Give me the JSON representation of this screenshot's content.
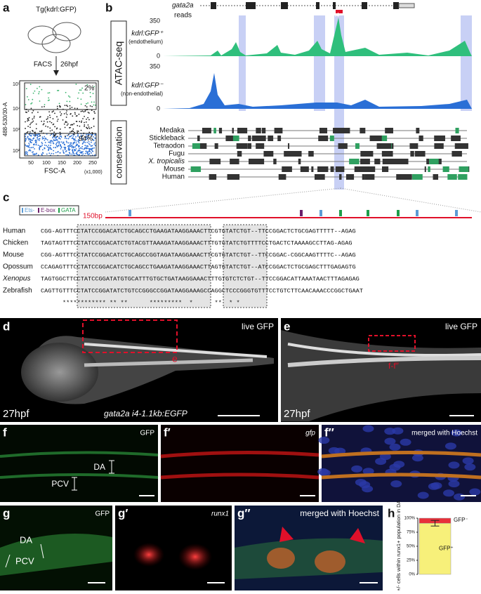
{
  "panel_a": {
    "letter": "a",
    "fish": "Tg(kdrl:GFP)",
    "facs": "FACS",
    "stage": "26hpf",
    "gate_top": "2%",
    "gate_bottom": "94%",
    "y_label": "488-530/30-A",
    "x_label": "FSC-A",
    "x_unit": "(x1,000)",
    "y_ticks": [
      "10⁵",
      "10⁴",
      "10³",
      "10²"
    ],
    "x_ticks": [
      "50",
      "100",
      "150",
      "200",
      "250"
    ]
  },
  "panel_b": {
    "letter": "b",
    "gene": "gata2a",
    "reads": "reads",
    "intron": "i4",
    "atac": "ATAC-seq",
    "track1": "kdrl:GFP⁺",
    "track1_sub": "(endothelium)",
    "track1_max": "350",
    "track1_min": "0",
    "track2": "kdrl:GFP⁻",
    "track2_sub": "(non-endothelial)",
    "track2_max": "350",
    "track2_min": "0",
    "conservation": "conservation",
    "species": [
      "Medaka",
      "Stickleback",
      "Tetraodon",
      "Fugu",
      "X. tropicalis",
      "Mouse",
      "Human"
    ]
  },
  "panel_c": {
    "letter": "c",
    "legend": [
      "Ets-",
      "E-box",
      "GATA"
    ],
    "scale": "150bp",
    "names": [
      "Human",
      "Chicken",
      "Mouse",
      "Opossum",
      "Xenopus",
      "Zebrafish"
    ],
    "sequences": [
      "CGG-AGTTTCCTATCCGGACATCTGCAGCCTGAAGATAAGGAAACTTCGTGTATCTGT--TTCCGGACTCTGCGAGTTTTT--AGAG",
      "TAGTAGTTTCCTATCCGGACATCTGTACGTTAAAGATAAGGAAACTTTGTGTATCTGTTTTCCTGACTCTAAAAGCCTTAG-AGAG",
      "CGG-AGTTTCCTATCCGGACATCTGCAGCCGGTAGATAAGGAAACTTCGTGTATCTGT--TTCCGGAC-CGGCAAGTTTTC--AGAG",
      "CCAGAGTTTCCTATCCGGACATCTGCAGCCTGAAGATAAGGAAACTTAGTGTATCTGT--ATCCGGACTCTGCGAGCTTTGAGAGTG",
      "TAGTGGCTTCCTATCCGGATATGTGCATTTGTGCTGATAAGGAAACTTTGTGTCTCTGT--TTCCGGACATTAAATAACTTTAGAGAG",
      "CAGTTGTTTCCTATCCGGATATCTGTCCGGGCCGGATAAGGAAAGCCAGGCTCCCGGGTGTTTCCTGTCTTCAACAAACCCGGCTGAAT"
    ],
    "conserved": "      ************ ** **      *********  *      **  * *"
  },
  "panel_d": {
    "letter": "d",
    "label": "live GFP",
    "box": "e",
    "stage": "27hpf",
    "construct": "gata2a i4-1.1kb:EGFP"
  },
  "panel_e": {
    "letter": "e",
    "label": "live GFP",
    "box": "f-f″",
    "stage": "27hpf"
  },
  "panel_f": {
    "letter": "f",
    "label": "GFP",
    "da": "DA",
    "pcv": "PCV"
  },
  "panel_f1": {
    "letter": "f′",
    "label": "gfp"
  },
  "panel_f2": {
    "letter": "f″",
    "label": "merged with Hoechst"
  },
  "panel_g": {
    "letter": "g",
    "label": "GFP",
    "da": "DA",
    "pcv": "PCV"
  },
  "panel_g1": {
    "letter": "g′",
    "label": "runx1"
  },
  "panel_g2": {
    "letter": "g″",
    "label": "merged with Hoechst"
  },
  "chart_data": {
    "type": "stacked_bar",
    "letter": "h",
    "y_label": "GFP+/- cells within runx1+ population in DA",
    "ylim": [
      0,
      100
    ],
    "yticks": [
      {
        "value": 0,
        "label": "0%"
      },
      {
        "value": 25,
        "label": "25%"
      },
      {
        "value": 50,
        "label": "50%"
      },
      {
        "value": 75,
        "label": "75%"
      },
      {
        "value": 100,
        "label": "100%"
      }
    ],
    "series": [
      {
        "name": "GFP⁺",
        "color": "#f7f07a",
        "values": [
          91
        ]
      },
      {
        "name": "GFP⁻",
        "color": "#e8303a",
        "values": [
          9
        ],
        "errors": [
          5
        ]
      }
    ]
  }
}
